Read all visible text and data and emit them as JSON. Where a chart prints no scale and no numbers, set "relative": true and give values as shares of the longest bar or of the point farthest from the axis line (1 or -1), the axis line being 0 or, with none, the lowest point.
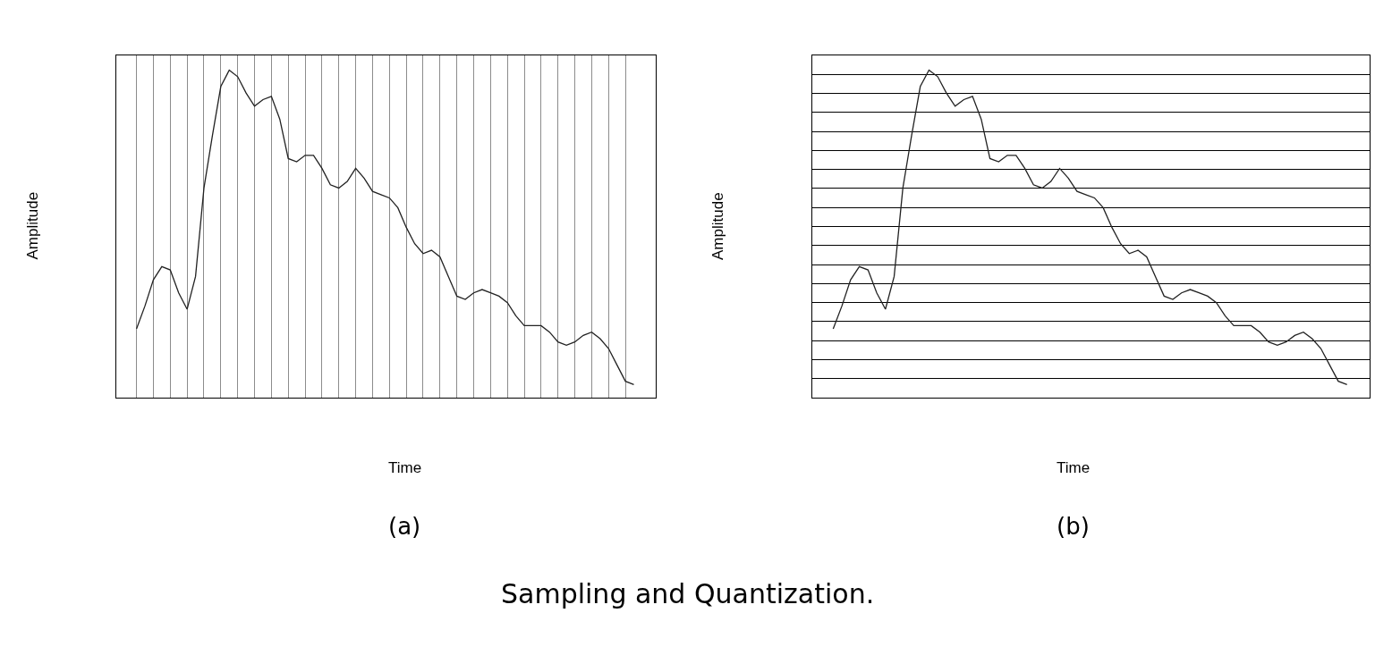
{
  "chart_data": [
    {
      "type": "line",
      "relative": true,
      "xlabel": "Time",
      "ylabel": "Amplitude",
      "grid": "x",
      "marker": "none",
      "line_style": "solid",
      "annotations": [
        "(a)"
      ],
      "categories": [
        null,
        null,
        null,
        null,
        null,
        null,
        null,
        null,
        null,
        null,
        null,
        null,
        null,
        null,
        null,
        null,
        null,
        null,
        null,
        null,
        null,
        null,
        null,
        null,
        null,
        null,
        null,
        null,
        null,
        null,
        null,
        null,
        null,
        null,
        null,
        null,
        null,
        null,
        null,
        null,
        null,
        null,
        null,
        null,
        null,
        null,
        null,
        null,
        null,
        null,
        null,
        null,
        null,
        null,
        null,
        null,
        null,
        null,
        null,
        null
      ],
      "series": [
        {
          "color": "#222222",
          "values": [
            0.21,
            0.28,
            0.36,
            0.4,
            0.39,
            0.32,
            0.27,
            0.37,
            0.64,
            0.8,
            0.95,
            1.0,
            0.98,
            0.93,
            0.89,
            0.91,
            0.92,
            0.85,
            0.73,
            0.72,
            0.74,
            0.74,
            0.7,
            0.65,
            0.64,
            0.66,
            0.7,
            0.67,
            0.63,
            0.62,
            0.61,
            0.58,
            0.52,
            0.47,
            0.44,
            0.45,
            0.43,
            0.37,
            0.31,
            0.3,
            0.32,
            0.33,
            0.32,
            0.31,
            0.29,
            0.25,
            0.22,
            0.22,
            0.22,
            0.2,
            0.17,
            0.16,
            0.17,
            0.19,
            0.2,
            0.18,
            0.15,
            0.1,
            0.05,
            0.04
          ]
        }
      ]
    },
    {
      "type": "line",
      "relative": true,
      "xlabel": "Time",
      "ylabel": "Amplitude",
      "grid": "y",
      "marker": "none",
      "line_style": "solid",
      "annotations": [
        "(b)",
        "Sampling and Quantization."
      ],
      "categories": [
        null,
        null,
        null,
        null,
        null,
        null,
        null,
        null,
        null,
        null,
        null,
        null,
        null,
        null,
        null,
        null,
        null,
        null,
        null,
        null,
        null,
        null,
        null,
        null,
        null,
        null,
        null,
        null,
        null,
        null,
        null,
        null,
        null,
        null,
        null,
        null,
        null,
        null,
        null,
        null,
        null,
        null,
        null,
        null,
        null,
        null,
        null,
        null,
        null,
        null,
        null,
        null,
        null,
        null,
        null,
        null,
        null,
        null,
        null,
        null
      ],
      "series": [
        {
          "color": "#222222",
          "values": [
            0.21,
            0.28,
            0.36,
            0.4,
            0.39,
            0.32,
            0.27,
            0.37,
            0.64,
            0.8,
            0.95,
            1.0,
            0.98,
            0.93,
            0.89,
            0.91,
            0.92,
            0.85,
            0.73,
            0.72,
            0.74,
            0.74,
            0.7,
            0.65,
            0.64,
            0.66,
            0.7,
            0.67,
            0.63,
            0.62,
            0.61,
            0.58,
            0.52,
            0.47,
            0.44,
            0.45,
            0.43,
            0.37,
            0.31,
            0.3,
            0.32,
            0.33,
            0.32,
            0.31,
            0.29,
            0.25,
            0.22,
            0.22,
            0.22,
            0.2,
            0.17,
            0.16,
            0.17,
            0.19,
            0.2,
            0.18,
            0.15,
            0.1,
            0.05,
            0.04
          ]
        }
      ]
    }
  ]
}
